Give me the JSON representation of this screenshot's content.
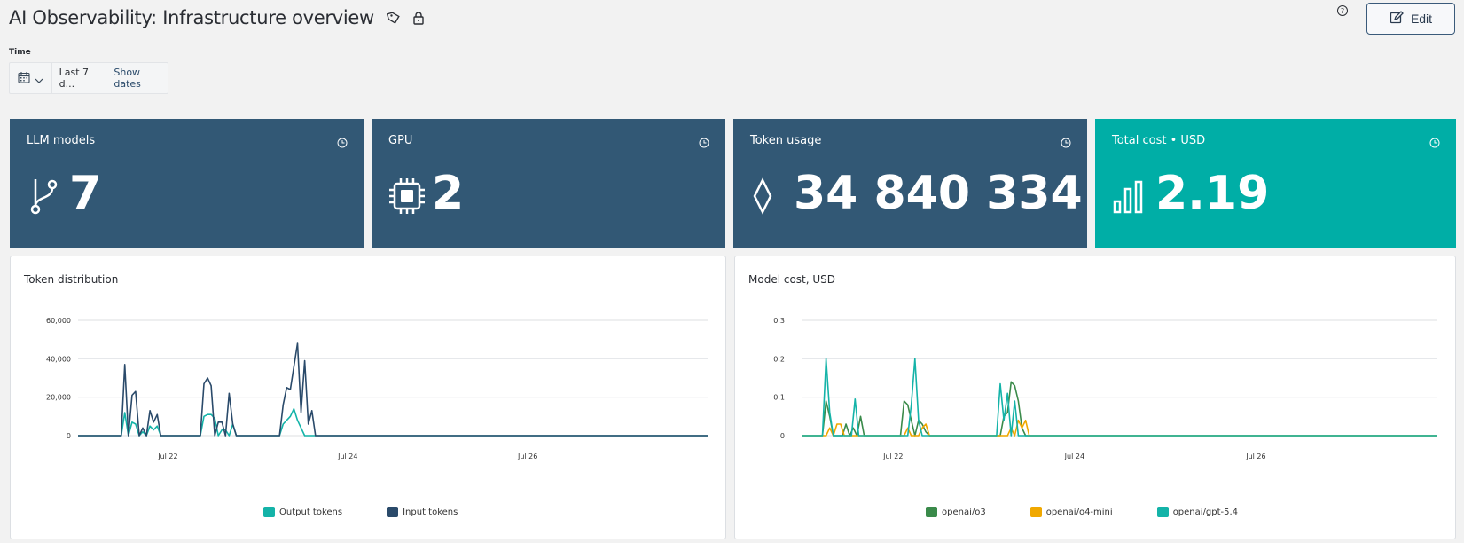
{
  "header": {
    "title": "AI Observability: Infrastructure overview",
    "edit_label": "Edit"
  },
  "time": {
    "label": "Time",
    "range": "Last 7 d...",
    "show_dates": "Show dates"
  },
  "kpis": [
    {
      "title": "LLM models",
      "value": "7",
      "icon": "branch-icon",
      "color": "#325875"
    },
    {
      "title": "GPU",
      "value": "2",
      "icon": "chip-icon",
      "color": "#325875"
    },
    {
      "title": "Token usage",
      "value": "34 840 334",
      "icon": "diamond-icon",
      "color": "#325875"
    },
    {
      "title": "Total cost • USD",
      "value": "2.19",
      "icon": "bar-chart-icon",
      "color": "#00aea6"
    }
  ],
  "panels": {
    "tokens": {
      "title": "Token distribution"
    },
    "cost": {
      "title": "Model cost, USD"
    }
  },
  "chart_data": [
    {
      "type": "line",
      "title": "Token distribution",
      "yticks": [
        "60,000",
        "40,000",
        "20,000",
        "0"
      ],
      "ylim": [
        0,
        60000
      ],
      "xlim": [
        0,
        7
      ],
      "xticks": [
        {
          "x": 1.0,
          "label": "Jul 22"
        },
        {
          "x": 3.0,
          "label": "Jul 24"
        },
        {
          "x": 5.0,
          "label": "Jul 26"
        }
      ],
      "series": [
        {
          "name": "Output tokens",
          "color": "#14b3a8",
          "points": [
            [
              0,
              0
            ],
            [
              0.48,
              0
            ],
            [
              0.52,
              12000
            ],
            [
              0.56,
              0
            ],
            [
              0.6,
              7000
            ],
            [
              0.64,
              6000
            ],
            [
              0.68,
              0
            ],
            [
              0.72,
              2000
            ],
            [
              0.76,
              0
            ],
            [
              0.8,
              5000
            ],
            [
              0.84,
              3000
            ],
            [
              0.88,
              5000
            ],
            [
              0.92,
              0
            ],
            [
              1.36,
              0
            ],
            [
              1.4,
              10000
            ],
            [
              1.44,
              11000
            ],
            [
              1.48,
              11000
            ],
            [
              1.52,
              9000
            ],
            [
              1.56,
              0
            ],
            [
              1.6,
              3000
            ],
            [
              1.64,
              3000
            ],
            [
              1.68,
              0
            ],
            [
              1.72,
              6000
            ],
            [
              1.76,
              0
            ],
            [
              2.24,
              0
            ],
            [
              2.28,
              6000
            ],
            [
              2.32,
              8000
            ],
            [
              2.36,
              10000
            ],
            [
              2.4,
              14000
            ],
            [
              2.44,
              8000
            ],
            [
              2.48,
              4000
            ],
            [
              2.52,
              0
            ],
            [
              7,
              0
            ]
          ]
        },
        {
          "name": "Input tokens",
          "color": "#2a4a6a",
          "points": [
            [
              0,
              0
            ],
            [
              0.48,
              0
            ],
            [
              0.52,
              37000
            ],
            [
              0.56,
              0
            ],
            [
              0.6,
              21000
            ],
            [
              0.64,
              23000
            ],
            [
              0.68,
              0
            ],
            [
              0.72,
              4000
            ],
            [
              0.76,
              0
            ],
            [
              0.8,
              13000
            ],
            [
              0.84,
              7000
            ],
            [
              0.88,
              11000
            ],
            [
              0.92,
              0
            ],
            [
              1.36,
              0
            ],
            [
              1.4,
              27000
            ],
            [
              1.44,
              30000
            ],
            [
              1.48,
              26000
            ],
            [
              1.52,
              0
            ],
            [
              1.56,
              7000
            ],
            [
              1.6,
              7000
            ],
            [
              1.64,
              0
            ],
            [
              1.68,
              22000
            ],
            [
              1.72,
              6000
            ],
            [
              1.76,
              0
            ],
            [
              2.24,
              0
            ],
            [
              2.28,
              16000
            ],
            [
              2.32,
              25000
            ],
            [
              2.36,
              24000
            ],
            [
              2.44,
              48000
            ],
            [
              2.48,
              12000
            ],
            [
              2.52,
              39000
            ],
            [
              2.56,
              6000
            ],
            [
              2.6,
              13000
            ],
            [
              2.64,
              0
            ],
            [
              7,
              0
            ]
          ]
        }
      ]
    },
    {
      "type": "line",
      "title": "Model cost, USD",
      "yticks": [
        "0.3",
        "0.2",
        "0.1",
        "0"
      ],
      "ylim": [
        0,
        0.3
      ],
      "xlim": [
        0,
        7
      ],
      "xticks": [
        {
          "x": 1.0,
          "label": "Jul 22"
        },
        {
          "x": 3.0,
          "label": "Jul 24"
        },
        {
          "x": 5.0,
          "label": "Jul 26"
        }
      ],
      "series": [
        {
          "name": "openai/o3",
          "color": "#3a8a4a",
          "points": [
            [
              0,
              0
            ],
            [
              0.22,
              0
            ],
            [
              0.26,
              0.09
            ],
            [
              0.3,
              0.05
            ],
            [
              0.34,
              0
            ],
            [
              0.44,
              0
            ],
            [
              0.48,
              0.03
            ],
            [
              0.52,
              0
            ],
            [
              0.56,
              0.02
            ],
            [
              0.6,
              0
            ],
            [
              0.64,
              0.05
            ],
            [
              0.68,
              0
            ],
            [
              1.08,
              0
            ],
            [
              1.12,
              0.09
            ],
            [
              1.16,
              0.08
            ],
            [
              1.2,
              0.04
            ],
            [
              1.24,
              0
            ],
            [
              1.28,
              0.04
            ],
            [
              1.32,
              0.03
            ],
            [
              1.36,
              0.01
            ],
            [
              1.4,
              0
            ],
            [
              2.18,
              0
            ],
            [
              2.22,
              0.05
            ],
            [
              2.26,
              0.06
            ],
            [
              2.3,
              0.14
            ],
            [
              2.34,
              0.13
            ],
            [
              2.38,
              0.09
            ],
            [
              2.42,
              0.02
            ],
            [
              2.46,
              0
            ],
            [
              7,
              0
            ]
          ]
        },
        {
          "name": "openai/o4-mini",
          "color": "#f0a800",
          "points": [
            [
              0,
              0
            ],
            [
              0.26,
              0
            ],
            [
              0.3,
              0.02
            ],
            [
              0.34,
              0
            ],
            [
              0.38,
              0.03
            ],
            [
              0.42,
              0.03
            ],
            [
              0.46,
              0
            ],
            [
              1.12,
              0
            ],
            [
              1.16,
              0.02
            ],
            [
              1.2,
              0
            ],
            [
              1.28,
              0
            ],
            [
              1.32,
              0.02
            ],
            [
              1.36,
              0.03
            ],
            [
              1.4,
              0
            ],
            [
              2.26,
              0
            ],
            [
              2.3,
              0.02
            ],
            [
              2.34,
              0
            ],
            [
              2.38,
              0.04
            ],
            [
              2.42,
              0.02
            ],
            [
              2.46,
              0.04
            ],
            [
              2.5,
              0
            ],
            [
              7,
              0
            ]
          ]
        },
        {
          "name": "openai/gpt-5.4",
          "color": "#14b3a8",
          "points": [
            [
              0,
              0
            ],
            [
              0.22,
              0
            ],
            [
              0.26,
              0.2
            ],
            [
              0.3,
              0.06
            ],
            [
              0.34,
              0
            ],
            [
              0.54,
              0
            ],
            [
              0.58,
              0.095
            ],
            [
              0.62,
              0
            ],
            [
              1.16,
              0
            ],
            [
              1.2,
              0.08
            ],
            [
              1.24,
              0.2
            ],
            [
              1.28,
              0.04
            ],
            [
              1.32,
              0
            ],
            [
              2.14,
              0
            ],
            [
              2.18,
              0.135
            ],
            [
              2.22,
              0.04
            ],
            [
              2.26,
              0.11
            ],
            [
              2.3,
              0
            ],
            [
              2.34,
              0.09
            ],
            [
              2.38,
              0
            ],
            [
              7,
              0
            ]
          ]
        }
      ]
    }
  ]
}
